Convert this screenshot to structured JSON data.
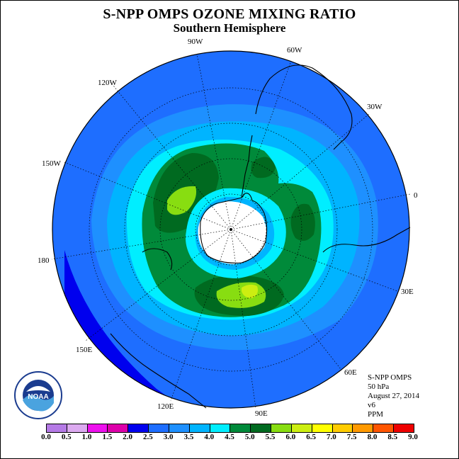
{
  "header": {
    "title": "S-NPP OMPS OZONE MIXING RATIO",
    "subtitle": "Southern Hemisphere"
  },
  "map": {
    "projection": "south-polar-stereographic",
    "longitude_labels": [
      "90W",
      "60W",
      "30W",
      "0",
      "30E",
      "60E",
      "90E",
      "120E",
      "150E",
      "180",
      "150W",
      "120W"
    ]
  },
  "info": {
    "instrument": "S-NPP OMPS",
    "level": "50 hPa",
    "date": "August 27, 2014",
    "version": "v6",
    "units": "PPM"
  },
  "colorbar": {
    "tick_labels": [
      "0.0",
      "0.5",
      "1.0",
      "1.5",
      "2.0",
      "2.5",
      "3.0",
      "3.5",
      "4.0",
      "4.5",
      "5.0",
      "5.5",
      "6.0",
      "6.5",
      "7.0",
      "7.5",
      "8.0",
      "8.5",
      "9.0"
    ],
    "colors": [
      "#b57ae6",
      "#dcaaf0",
      "#ee11ee",
      "#dd00aa",
      "#0000ee",
      "#1e6eff",
      "#1e90ff",
      "#00b4ff",
      "#00eeff",
      "#008a3a",
      "#006a20",
      "#88dd11",
      "#ccee11",
      "#ffff00",
      "#ffcc00",
      "#ff9900",
      "#ff5500",
      "#ee0000",
      "#885533"
    ]
  },
  "logo": {
    "text": "NOAA"
  },
  "colors": {
    "ring_outer": "#1e6eff",
    "ring_3_0": "#1e90ff",
    "ring_3_5": "#00b4ff",
    "ring_4_0": "#00eeff",
    "ring_4_5": "#008a3a",
    "ring_5_0": "#006a20",
    "low": "#0000ee",
    "high": "#ccee11"
  }
}
